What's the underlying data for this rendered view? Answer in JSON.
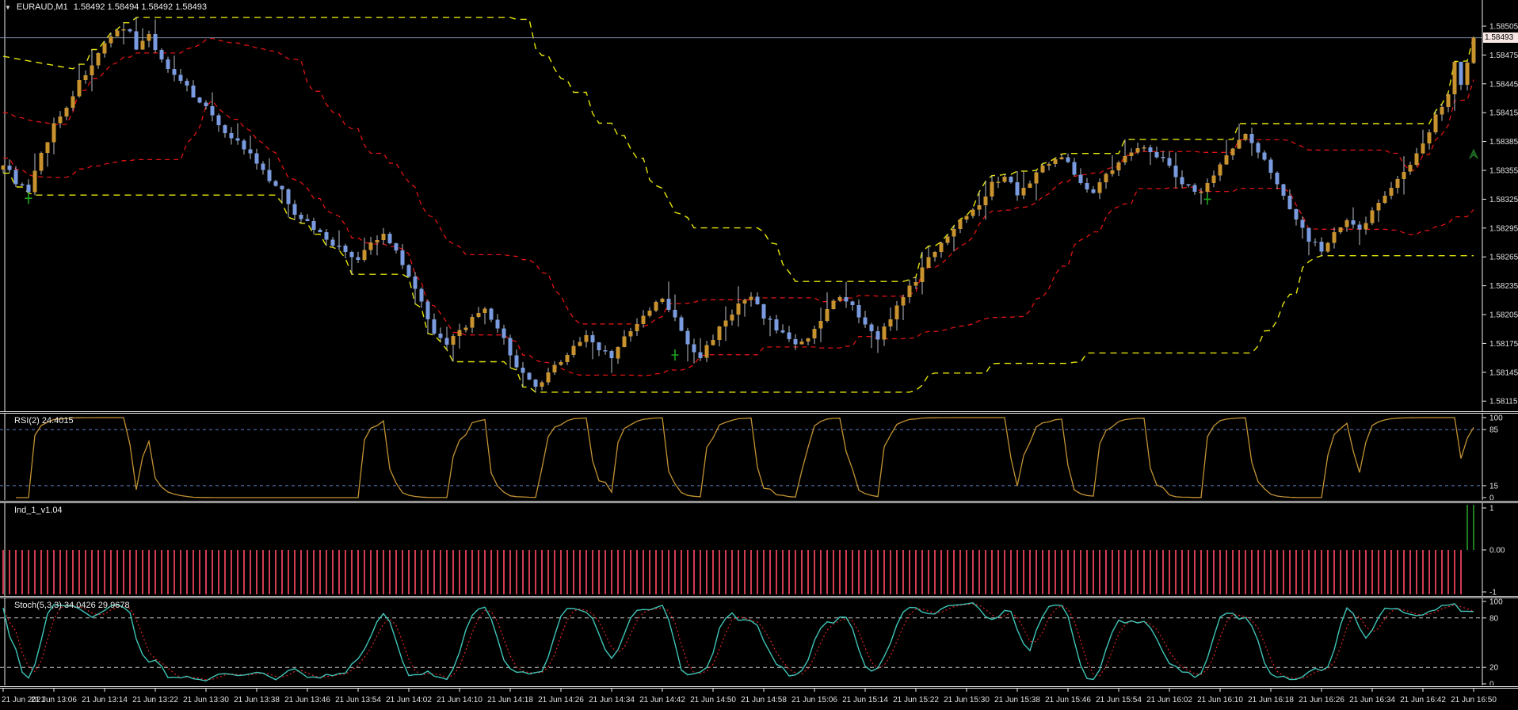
{
  "window": {
    "title_symbol": "EURAUD,M1",
    "title_ohlc": "1.58492 1.58494 1.58492 1.58493"
  },
  "price_scale": {
    "labels": [
      "1.58505",
      "1.58475",
      "1.58445",
      "1.58415",
      "1.58385",
      "1.58355",
      "1.58325",
      "1.58295",
      "1.58265",
      "1.58235",
      "1.58205",
      "1.58175",
      "1.58145",
      "1.58115"
    ],
    "current": "1.58493"
  },
  "time_scale": {
    "labels": [
      "21 Jun 2021",
      "21 Jun 13:06",
      "21 Jun 13:14",
      "21 Jun 13:22",
      "21 Jun 13:30",
      "21 Jun 13:38",
      "21 Jun 13:46",
      "21 Jun 13:54",
      "21 Jun 14:02",
      "21 Jun 14:10",
      "21 Jun 14:18",
      "21 Jun 14:26",
      "21 Jun 14:34",
      "21 Jun 14:42",
      "21 Jun 14:50",
      "21 Jun 14:58",
      "21 Jun 15:06",
      "21 Jun 15:14",
      "21 Jun 15:22",
      "21 Jun 15:30",
      "21 Jun 15:38",
      "21 Jun 15:46",
      "21 Jun 15:54",
      "21 Jun 16:02",
      "21 Jun 16:10",
      "21 Jun 16:18",
      "21 Jun 16:26",
      "21 Jun 16:34",
      "21 Jun 16:42",
      "21 Jun 16:50"
    ]
  },
  "panels": {
    "rsi": {
      "label": "RSI(2) 24.4015",
      "scale": [
        100,
        85,
        15,
        0
      ],
      "levels": [
        85,
        15
      ]
    },
    "ind": {
      "label": "Ind_1_v1.04",
      "scale_text": [
        "1",
        "0.00",
        "-1"
      ],
      "scale_vals": [
        1,
        0,
        -1
      ]
    },
    "stoch": {
      "label": "Stoch(5,3,3) 34.0426 29.9678",
      "scale": [
        100,
        80,
        20,
        0
      ],
      "levels": [
        80,
        20
      ]
    }
  },
  "chart_data": {
    "type": "candlestick",
    "symbol": "EURAUD",
    "timeframe": "M1",
    "bars_count": 233,
    "y_range": [
      1.58104,
      1.58532
    ],
    "current_price": 1.58493,
    "price_anchors": [
      [
        0,
        1.5836
      ],
      [
        2,
        1.58344
      ],
      [
        4,
        1.58331
      ],
      [
        6,
        1.58372
      ],
      [
        8,
        1.58402
      ],
      [
        10,
        1.58422
      ],
      [
        12,
        1.58446
      ],
      [
        14,
        1.58466
      ],
      [
        16,
        1.58484
      ],
      [
        18,
        1.58498
      ],
      [
        20,
        1.58503
      ],
      [
        21,
        1.58482
      ],
      [
        23,
        1.58496
      ],
      [
        25,
        1.5847
      ],
      [
        27,
        1.58452
      ],
      [
        29,
        1.5844
      ],
      [
        31,
        1.58428
      ],
      [
        33,
        1.58412
      ],
      [
        35,
        1.58396
      ],
      [
        38,
        1.58378
      ],
      [
        40,
        1.58362
      ],
      [
        42,
        1.58344
      ],
      [
        44,
        1.58332
      ],
      [
        46,
        1.58312
      ],
      [
        48,
        1.583
      ],
      [
        50,
        1.5829
      ],
      [
        53,
        1.58274
      ],
      [
        56,
        1.58262
      ],
      [
        58,
        1.58278
      ],
      [
        60,
        1.58288
      ],
      [
        62,
        1.58272
      ],
      [
        64,
        1.58246
      ],
      [
        66,
        1.58218
      ],
      [
        68,
        1.58188
      ],
      [
        70,
        1.58172
      ],
      [
        72,
        1.58188
      ],
      [
        74,
        1.582
      ],
      [
        76,
        1.58208
      ],
      [
        78,
        1.58192
      ],
      [
        80,
        1.58164
      ],
      [
        82,
        1.58142
      ],
      [
        84,
        1.58128
      ],
      [
        86,
        1.58142
      ],
      [
        88,
        1.58158
      ],
      [
        90,
        1.58172
      ],
      [
        92,
        1.58182
      ],
      [
        94,
        1.5817
      ],
      [
        96,
        1.58162
      ],
      [
        98,
        1.5818
      ],
      [
        100,
        1.58194
      ],
      [
        102,
        1.5821
      ],
      [
        104,
        1.58222
      ],
      [
        106,
        1.582
      ],
      [
        108,
        1.58174
      ],
      [
        110,
        1.5816
      ],
      [
        112,
        1.58182
      ],
      [
        114,
        1.582
      ],
      [
        116,
        1.58214
      ],
      [
        118,
        1.58222
      ],
      [
        120,
        1.58204
      ],
      [
        122,
        1.5819
      ],
      [
        124,
        1.5818
      ],
      [
        126,
        1.58174
      ],
      [
        128,
        1.58192
      ],
      [
        130,
        1.5821
      ],
      [
        132,
        1.58222
      ],
      [
        134,
        1.58212
      ],
      [
        136,
        1.58192
      ],
      [
        138,
        1.58182
      ],
      [
        140,
        1.58202
      ],
      [
        142,
        1.58222
      ],
      [
        144,
        1.58242
      ],
      [
        146,
        1.58262
      ],
      [
        148,
        1.58282
      ],
      [
        150,
        1.58294
      ],
      [
        152,
        1.5831
      ],
      [
        154,
        1.58322
      ],
      [
        156,
        1.5834
      ],
      [
        158,
        1.5835
      ],
      [
        160,
        1.58332
      ],
      [
        162,
        1.58342
      ],
      [
        164,
        1.5836
      ],
      [
        166,
        1.5837
      ],
      [
        168,
        1.58362
      ],
      [
        170,
        1.58344
      ],
      [
        172,
        1.58332
      ],
      [
        174,
        1.5835
      ],
      [
        176,
        1.58362
      ],
      [
        178,
        1.58374
      ],
      [
        180,
        1.58382
      ],
      [
        182,
        1.58372
      ],
      [
        184,
        1.5836
      ],
      [
        186,
        1.58342
      ],
      [
        188,
        1.58332
      ],
      [
        190,
        1.5834
      ],
      [
        192,
        1.58362
      ],
      [
        194,
        1.5838
      ],
      [
        196,
        1.58392
      ],
      [
        198,
        1.58374
      ],
      [
        200,
        1.58352
      ],
      [
        202,
        1.58332
      ],
      [
        204,
        1.58304
      ],
      [
        206,
        1.58284
      ],
      [
        208,
        1.58272
      ],
      [
        210,
        1.58288
      ],
      [
        212,
        1.583
      ],
      [
        214,
        1.58292
      ],
      [
        216,
        1.58312
      ],
      [
        218,
        1.58332
      ],
      [
        220,
        1.58344
      ],
      [
        222,
        1.58362
      ],
      [
        224,
        1.58384
      ],
      [
        226,
        1.58412
      ],
      [
        228,
        1.58436
      ],
      [
        229,
        1.58468
      ],
      [
        230,
        1.58444
      ],
      [
        231,
        1.5847
      ],
      [
        232,
        1.58493
      ]
    ],
    "bands": {
      "outer_window": 60,
      "inner_window": 24,
      "inner_upper_frac": 0.8,
      "inner_lower_frac": 0.2
    },
    "markers": [
      {
        "type": "cross",
        "bar": 4,
        "price": 1.58326
      },
      {
        "type": "cross",
        "bar": 106,
        "price": 1.58163
      },
      {
        "type": "cross",
        "bar": 190,
        "price": 1.58325
      },
      {
        "type": "arrow-up",
        "bar": 232,
        "price": 1.58372
      }
    ],
    "indicators": {
      "rsi": {
        "period": 2,
        "value": 24.4015,
        "levels": [
          85,
          15
        ]
      },
      "hist": {
        "negative_value": -1,
        "positive_value": 1,
        "negative_until_bar": 230,
        "positive_bars": [
          231,
          232
        ]
      },
      "stoch": {
        "k": 5,
        "d": 3,
        "slowing": 3,
        "main_value": 34.0426,
        "signal_value": 29.9678,
        "levels": [
          80,
          20
        ]
      }
    }
  },
  "colors": {
    "background": "#000000",
    "candle_bull": "#C8922E",
    "candle_bear": "#7A9BDF",
    "wick": "#B9BFC7",
    "band_outer_yellow": "#E4E40C",
    "band_inner_red": "#DF1414",
    "current_price_line": "#7888A3",
    "rsi_line": "#C39334",
    "level_blue_dashed": "#5E81C8",
    "stoch_main": "#3FC4B7",
    "stoch_signal": "#E02424",
    "hist_negative": "#D23C50",
    "hist_positive": "#1E7E22",
    "marker_green": "#1FA51F",
    "arrow_green": "#1A5A20",
    "scale_text": "#E2E2E2",
    "separator": "#E9E9E9",
    "price_box_bg": "#F8E7E4"
  }
}
